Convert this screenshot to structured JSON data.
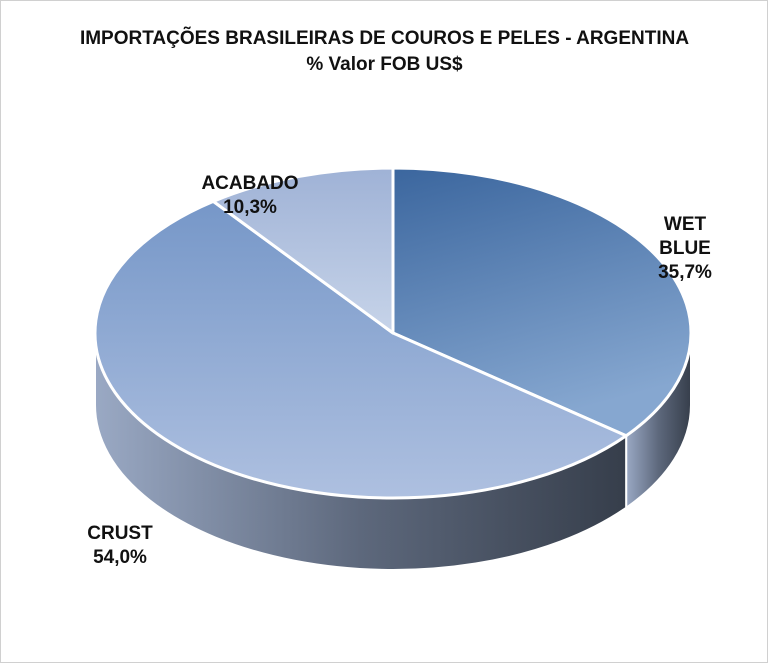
{
  "chart_data": {
    "type": "pie3d",
    "title": "IMPORTAÇÕES BRASILEIRAS DE COUROS E PELES - ARGENTINA",
    "subtitle": "% Valor FOB US$",
    "categories": [
      "WET BLUE",
      "CRUST",
      "ACABADO"
    ],
    "values": [
      35.7,
      54.0,
      10.3
    ],
    "value_labels": [
      "35,7%",
      "54,0%",
      "10,3%"
    ],
    "colors": [
      "#4a73a8",
      "#9fb5da",
      "#bccbe3"
    ]
  }
}
